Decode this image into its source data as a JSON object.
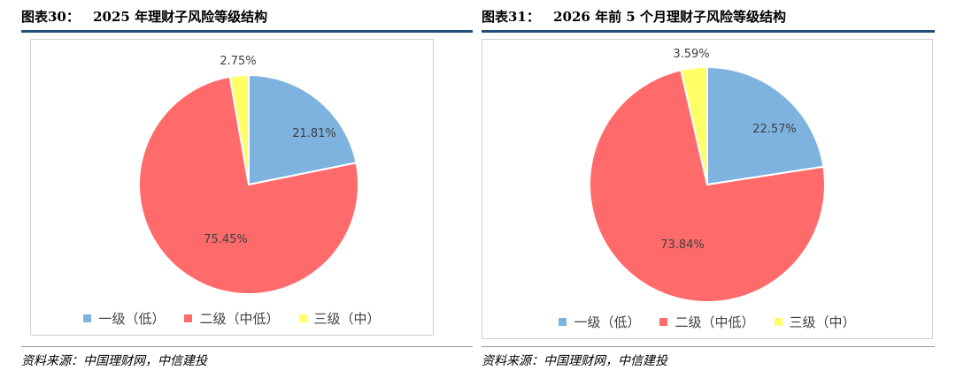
{
  "colors": {
    "low": "#7eb3e0",
    "midlow": "#ff6b6b",
    "mid": "#ffff66",
    "rule": "#1f4e79"
  },
  "chart_data": [
    {
      "type": "pie",
      "title": "2025 年理财子风险等级结构",
      "fig_number": "图表30：",
      "categories": [
        "一级（低）",
        "二级（中低）",
        "三级（中）"
      ],
      "values": [
        21.81,
        75.45,
        2.75
      ],
      "value_labels": [
        "21.81%",
        "75.45%",
        "2.75%"
      ],
      "legend_position": "bottom",
      "source": "资料来源：中国理财网，中信建投"
    },
    {
      "type": "pie",
      "title": "2026 年前 5 个月理财子风险等级结构",
      "fig_number": "图表31：",
      "categories": [
        "一级（低）",
        "二级（中低）",
        "三级（中）"
      ],
      "values": [
        22.57,
        73.84,
        3.59
      ],
      "value_labels": [
        "22.57%",
        "73.84%",
        "3.59%"
      ],
      "legend_position": "bottom",
      "source": "资料来源：中国理财网，中信建投"
    }
  ]
}
